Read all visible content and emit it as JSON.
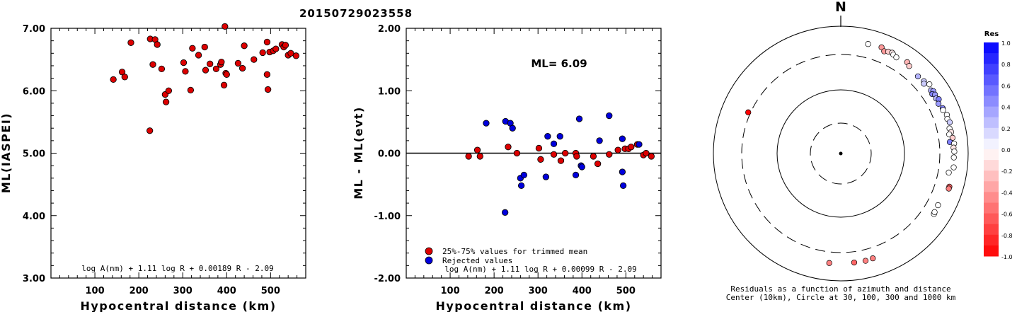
{
  "title": "20150729023558",
  "chart_data": [
    {
      "type": "scatter",
      "ylabel": "ML(IASPEI)",
      "xlabel": "Hypocentral distance (km)",
      "xlim": [
        0,
        580
      ],
      "ylim": [
        3.0,
        7.0
      ],
      "xticks": [
        "100",
        "200",
        "300",
        "400",
        "500"
      ],
      "yticks": [
        "3.00",
        "4.00",
        "5.00",
        "6.00",
        "7.00"
      ],
      "formula": "log A(nm) + 1.11 log R + 0.00189 R - 2.09",
      "point_color": "#dd0000",
      "points": [
        [
          142,
          6.18
        ],
        [
          162,
          6.3
        ],
        [
          168,
          6.22
        ],
        [
          182,
          6.77
        ],
        [
          225,
          5.36
        ],
        [
          226,
          6.83
        ],
        [
          232,
          6.42
        ],
        [
          237,
          6.82
        ],
        [
          242,
          6.74
        ],
        [
          252,
          6.35
        ],
        [
          260,
          5.94
        ],
        [
          262,
          5.82
        ],
        [
          268,
          6.0
        ],
        [
          302,
          6.45
        ],
        [
          306,
          6.31
        ],
        [
          318,
          6.01
        ],
        [
          322,
          6.68
        ],
        [
          336,
          6.57
        ],
        [
          350,
          6.7
        ],
        [
          352,
          6.33
        ],
        [
          362,
          6.43
        ],
        [
          376,
          6.35
        ],
        [
          386,
          6.42
        ],
        [
          388,
          6.46
        ],
        [
          394,
          6.09
        ],
        [
          396,
          7.03
        ],
        [
          398,
          6.28
        ],
        [
          400,
          6.26
        ],
        [
          426,
          6.44
        ],
        [
          436,
          6.36
        ],
        [
          440,
          6.72
        ],
        [
          462,
          6.5
        ],
        [
          482,
          6.61
        ],
        [
          492,
          6.78
        ],
        [
          492,
          6.26
        ],
        [
          494,
          6.02
        ],
        [
          498,
          6.62
        ],
        [
          506,
          6.64
        ],
        [
          512,
          6.67
        ],
        [
          526,
          6.74
        ],
        [
          530,
          6.7
        ],
        [
          534,
          6.73
        ],
        [
          540,
          6.57
        ],
        [
          546,
          6.6
        ],
        [
          558,
          6.56
        ]
      ]
    },
    {
      "type": "scatter",
      "ylabel": "ML - ML(evt)",
      "xlabel": "Hypocentral distance (km)",
      "xlim": [
        0,
        580
      ],
      "ylim": [
        -2.0,
        2.0
      ],
      "xticks": [
        "100",
        "200",
        "300",
        "400",
        "500"
      ],
      "yticks": [
        "-2.00",
        "-1.00",
        "0.00",
        "1.00",
        "2.00"
      ],
      "annotation": "ML= 6.09",
      "formula": "log A(nm) + 1.11 log R + 0.00099 R - 2.09",
      "reference_line": 0.0,
      "series": [
        {
          "name": "25%-75% values for trimmed mean",
          "color": "#dd0000",
          "points": [
            [
              142,
              -0.05
            ],
            [
              162,
              0.05
            ],
            [
              168,
              -0.05
            ],
            [
              232,
              0.1
            ],
            [
              252,
              0.0
            ],
            [
              302,
              0.08
            ],
            [
              306,
              -0.1
            ],
            [
              336,
              -0.02
            ],
            [
              352,
              -0.12
            ],
            [
              362,
              0.0
            ],
            [
              386,
              0.0
            ],
            [
              388,
              -0.05
            ],
            [
              426,
              -0.05
            ],
            [
              436,
              -0.17
            ],
            [
              462,
              -0.02
            ],
            [
              482,
              0.05
            ],
            [
              498,
              0.07
            ],
            [
              506,
              0.07
            ],
            [
              512,
              0.1
            ],
            [
              526,
              0.14
            ],
            [
              540,
              -0.03
            ],
            [
              546,
              0.0
            ],
            [
              558,
              -0.05
            ]
          ]
        },
        {
          "name": "Rejected values",
          "color": "#0000dd",
          "points": [
            [
              182,
              0.48
            ],
            [
              225,
              -0.95
            ],
            [
              226,
              0.51
            ],
            [
              237,
              0.48
            ],
            [
              242,
              0.4
            ],
            [
              260,
              -0.4
            ],
            [
              262,
              -0.52
            ],
            [
              268,
              -0.35
            ],
            [
              318,
              -0.38
            ],
            [
              322,
              0.27
            ],
            [
              336,
              0.15
            ],
            [
              350,
              0.27
            ],
            [
              386,
              -0.35
            ],
            [
              394,
              0.55
            ],
            [
              398,
              -0.2
            ],
            [
              400,
              -0.22
            ],
            [
              440,
              0.2
            ],
            [
              462,
              0.6
            ],
            [
              492,
              0.23
            ],
            [
              492,
              -0.3
            ],
            [
              494,
              -0.52
            ],
            [
              530,
              0.14
            ]
          ]
        }
      ]
    },
    {
      "type": "polar-scatter",
      "north_label": "N",
      "caption_line1": "Residuals as a function of azimuth and distance",
      "caption_line2": "Center (10km), Circle at 30, 100, 300 and 1000 km",
      "colorbar_title": "Res",
      "colorbar_labels": [
        "1.0",
        "0.8",
        "0.6",
        "0.4",
        "0.2",
        "0.0",
        "-0.2",
        "-0.4",
        "-0.6",
        "-0.8",
        "-1.0"
      ],
      "colorbar_range": [
        -1.0,
        1.0
      ],
      "points": [
        {
          "azimuth": 294,
          "distance": 330,
          "residual": -1.0
        },
        {
          "azimuth": 14,
          "distance": 540,
          "residual": 0.0
        },
        {
          "azimuth": 21,
          "distance": 560,
          "residual": -0.4
        },
        {
          "azimuth": 23,
          "distance": 500,
          "residual": -0.4
        },
        {
          "azimuth": 25,
          "distance": 530,
          "residual": -0.2
        },
        {
          "azimuth": 27,
          "distance": 545,
          "residual": -0.1
        },
        {
          "azimuth": 28,
          "distance": 520,
          "residual": 0.0
        },
        {
          "azimuth": 30,
          "distance": 500,
          "residual": 0.0
        },
        {
          "azimuth": 36,
          "distance": 540,
          "residual": -0.3
        },
        {
          "azimuth": 38,
          "distance": 500,
          "residual": -0.2
        },
        {
          "azimuth": 45,
          "distance": 460,
          "residual": 0.3
        },
        {
          "azimuth": 49,
          "distance": 480,
          "residual": 0.2
        },
        {
          "azimuth": 50,
          "distance": 450,
          "residual": 0.2
        },
        {
          "azimuth": 52,
          "distance": 530,
          "residual": 0.0
        },
        {
          "azimuth": 55,
          "distance": 480,
          "residual": 0.3
        },
        {
          "azimuth": 56,
          "distance": 510,
          "residual": 0.4
        },
        {
          "azimuth": 57,
          "distance": 460,
          "residual": 0.5
        },
        {
          "azimuth": 58,
          "distance": 500,
          "residual": 0.4
        },
        {
          "azimuth": 60,
          "distance": 480,
          "residual": 0.3
        },
        {
          "azimuth": 61,
          "distance": 520,
          "residual": 0.5
        },
        {
          "azimuth": 63,
          "distance": 470,
          "residual": 0.4
        },
        {
          "azimuth": 66,
          "distance": 510,
          "residual": 0.5
        },
        {
          "azimuth": 67,
          "distance": 500,
          "residual": 0.0
        },
        {
          "azimuth": 70,
          "distance": 540,
          "residual": 0.0
        },
        {
          "azimuth": 72,
          "distance": 520,
          "residual": 0.0
        },
        {
          "azimuth": 74,
          "distance": 550,
          "residual": 0.2
        },
        {
          "azimuth": 77,
          "distance": 510,
          "residual": 0.0
        },
        {
          "azimuth": 79,
          "distance": 530,
          "residual": -0.1
        },
        {
          "azimuth": 80,
          "distance": 480,
          "residual": 0.0
        },
        {
          "azimuth": 82,
          "distance": 540,
          "residual": -0.2
        },
        {
          "azimuth": 84,
          "distance": 470,
          "residual": 0.5
        },
        {
          "azimuth": 85,
          "distance": 560,
          "residual": 0.0
        },
        {
          "azimuth": 87,
          "distance": 540,
          "residual": -0.1
        },
        {
          "azimuth": 89,
          "distance": 555,
          "residual": 0.0
        },
        {
          "azimuth": 92,
          "distance": 545,
          "residual": 0.0
        },
        {
          "azimuth": 97,
          "distance": 560,
          "residual": 0.0
        },
        {
          "azimuth": 100,
          "distance": 470,
          "residual": 0.0
        },
        {
          "azimuth": 107,
          "distance": 555,
          "residual": -0.6
        },
        {
          "azimuth": 108,
          "distance": 555,
          "residual": -0.5
        },
        {
          "azimuth": 118,
          "distance": 480,
          "residual": 0.0
        },
        {
          "azimuth": 123,
          "distance": 500,
          "residual": 0.0
        },
        {
          "azimuth": 122,
          "distance": 490,
          "residual": 0.0
        },
        {
          "azimuth": 163,
          "distance": 470,
          "residual": -0.5
        },
        {
          "azimuth": 167,
          "distance": 480,
          "residual": -0.5
        },
        {
          "azimuth": 173,
          "distance": 475,
          "residual": -0.6
        },
        {
          "azimuth": 186,
          "distance": 480,
          "residual": -0.5
        }
      ]
    }
  ]
}
